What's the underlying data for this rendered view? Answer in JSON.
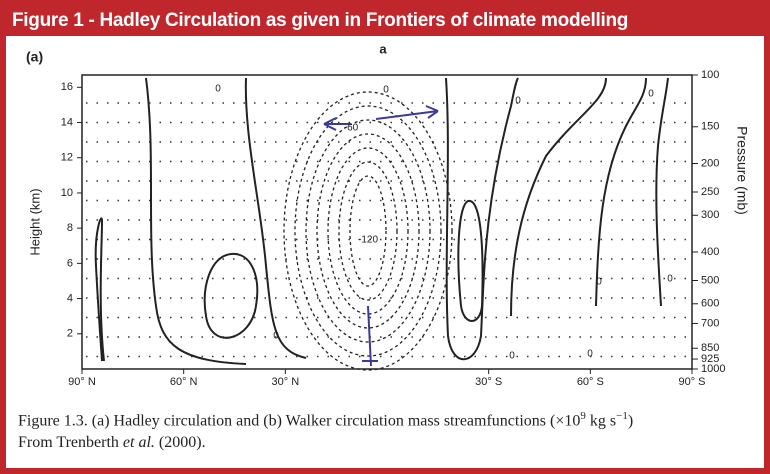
{
  "header": {
    "title": "Figure 1 - Hadley Circulation as given in Frontiers of climate modelling"
  },
  "chart_data": {
    "type": "contour",
    "panel_label": "(a)",
    "top_mark": "a",
    "ylabel": "Height (km)",
    "y2label": "Pressure (mb)",
    "xlim": [
      90,
      -90
    ],
    "xticks": [
      {
        "value": 90,
        "label": "90° N"
      },
      {
        "value": 60,
        "label": "60° N"
      },
      {
        "value": 30,
        "label": "30° N"
      },
      {
        "value": -30,
        "label": "30° S"
      },
      {
        "value": -60,
        "label": "60° S"
      },
      {
        "value": -90,
        "label": "90° S"
      }
    ],
    "ylim": [
      0,
      16.7
    ],
    "yticks": [
      2,
      4,
      6,
      8,
      10,
      12,
      14,
      16
    ],
    "y2lim": [
      1000,
      100
    ],
    "y2log": true,
    "y2ticks": [
      100,
      150,
      200,
      250,
      300,
      400,
      500,
      600,
      700,
      850,
      925,
      1000
    ],
    "contour_labels": [
      "0",
      "0",
      "0",
      "0",
      "0",
      "0",
      "0",
      "0",
      "-60",
      "-120",
      "0"
    ],
    "caption": {
      "line1": "Figure 1.3.  (a) Hadley circulation and (b) Walker circulation mass streamfunctions (×10",
      "exp1": "9",
      "unit": " kg s",
      "exp2": "−1",
      "close": ")",
      "line2_a": "From Trenberth ",
      "line2_b": "et al.",
      "line2_c": " (2000)."
    }
  }
}
